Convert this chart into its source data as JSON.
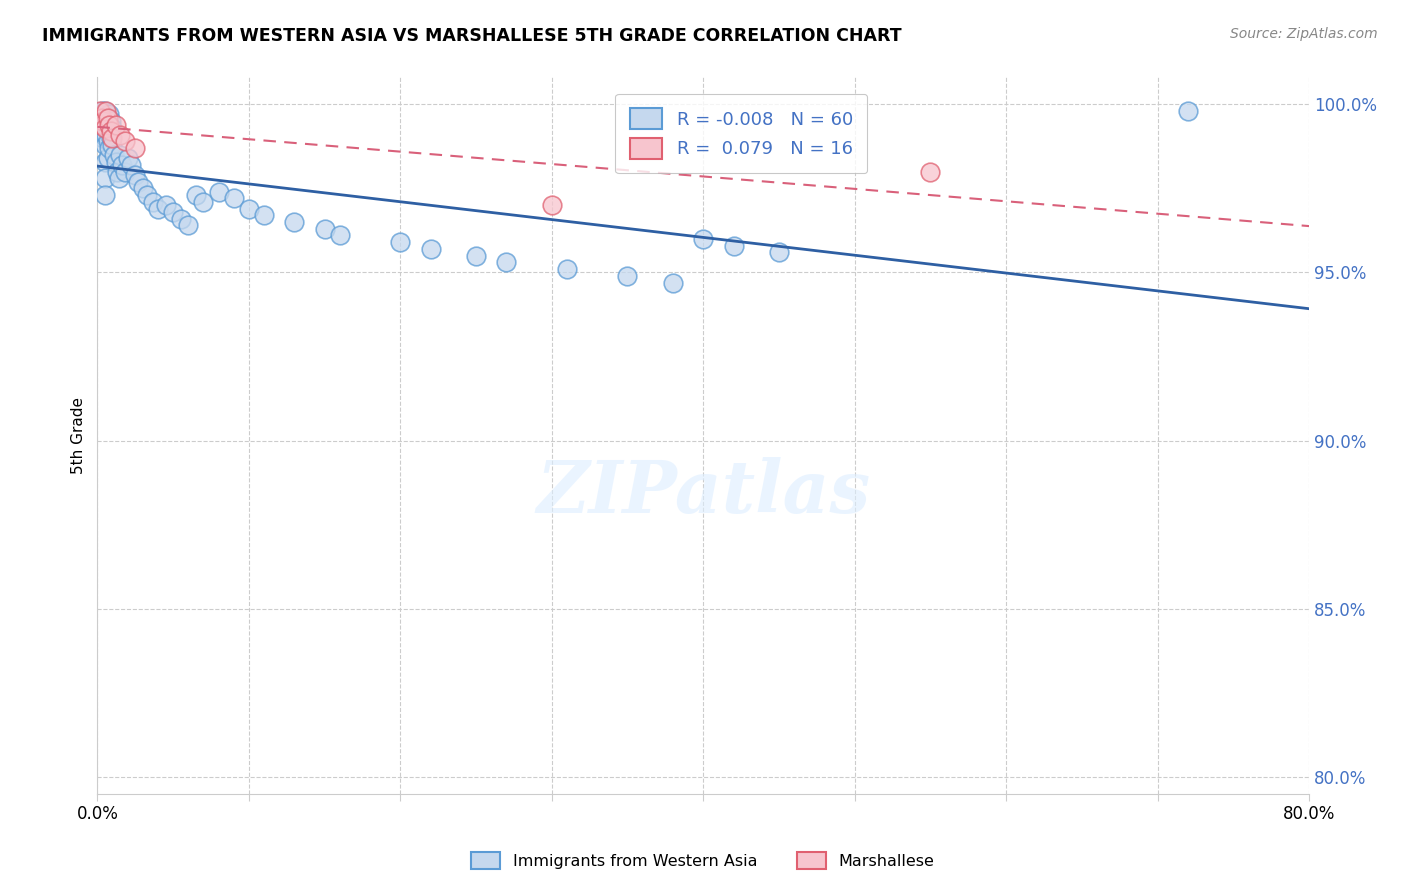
{
  "title": "IMMIGRANTS FROM WESTERN ASIA VS MARSHALLESE 5TH GRADE CORRELATION CHART",
  "source": "Source: ZipAtlas.com",
  "ylabel": "5th Grade",
  "xlim": [
    0.0,
    0.8
  ],
  "ylim": [
    0.795,
    1.008
  ],
  "yticks": [
    0.8,
    0.85,
    0.9,
    0.95,
    1.0
  ],
  "ytick_labels": [
    "80.0%",
    "85.0%",
    "90.0%",
    "95.0%",
    "100.0%"
  ],
  "xtick_positions": [
    0.0,
    0.1,
    0.2,
    0.3,
    0.4,
    0.5,
    0.6,
    0.7,
    0.8
  ],
  "xtick_labels": [
    "0.0%",
    "",
    "",
    "",
    "",
    "",
    "",
    "",
    "80.0%"
  ],
  "legend_R_blue": "-0.008",
  "legend_N_blue": "60",
  "legend_R_pink": " 0.079",
  "legend_N_pink": "16",
  "blue_face_color": "#c5d8ee",
  "blue_edge_color": "#5b9bd5",
  "pink_face_color": "#f7c5ce",
  "pink_edge_color": "#e06070",
  "blue_line_color": "#2e5fa3",
  "pink_line_color": "#d9607a",
  "grid_color": "#cccccc",
  "ytick_color": "#4472c4",
  "blue_x": [
    0.003,
    0.004,
    0.004,
    0.005,
    0.005,
    0.005,
    0.005,
    0.005,
    0.005,
    0.006,
    0.006,
    0.007,
    0.007,
    0.007,
    0.008,
    0.008,
    0.008,
    0.009,
    0.009,
    0.01,
    0.01,
    0.011,
    0.012,
    0.013,
    0.014,
    0.015,
    0.016,
    0.018,
    0.02,
    0.022,
    0.025,
    0.027,
    0.03,
    0.033,
    0.037,
    0.04,
    0.045,
    0.05,
    0.055,
    0.06,
    0.065,
    0.07,
    0.08,
    0.09,
    0.1,
    0.11,
    0.13,
    0.15,
    0.16,
    0.2,
    0.22,
    0.25,
    0.27,
    0.31,
    0.35,
    0.38,
    0.4,
    0.42,
    0.45,
    0.72
  ],
  "blue_y": [
    0.998,
    0.995,
    0.99,
    0.998,
    0.993,
    0.988,
    0.983,
    0.978,
    0.973,
    0.996,
    0.991,
    0.994,
    0.989,
    0.984,
    0.997,
    0.992,
    0.987,
    0.995,
    0.99,
    0.993,
    0.988,
    0.985,
    0.983,
    0.98,
    0.978,
    0.985,
    0.982,
    0.98,
    0.984,
    0.982,
    0.979,
    0.977,
    0.975,
    0.973,
    0.971,
    0.969,
    0.97,
    0.968,
    0.966,
    0.964,
    0.973,
    0.971,
    0.974,
    0.972,
    0.969,
    0.967,
    0.965,
    0.963,
    0.961,
    0.959,
    0.957,
    0.955,
    0.953,
    0.951,
    0.949,
    0.947,
    0.96,
    0.958,
    0.956,
    0.998
  ],
  "pink_x": [
    0.002,
    0.003,
    0.003,
    0.004,
    0.005,
    0.006,
    0.007,
    0.008,
    0.009,
    0.01,
    0.012,
    0.015,
    0.018,
    0.025,
    0.3,
    0.55
  ],
  "pink_y": [
    0.998,
    0.996,
    0.994,
    0.995,
    0.993,
    0.998,
    0.996,
    0.994,
    0.992,
    0.99,
    0.994,
    0.991,
    0.989,
    0.987,
    0.97,
    0.98
  ]
}
